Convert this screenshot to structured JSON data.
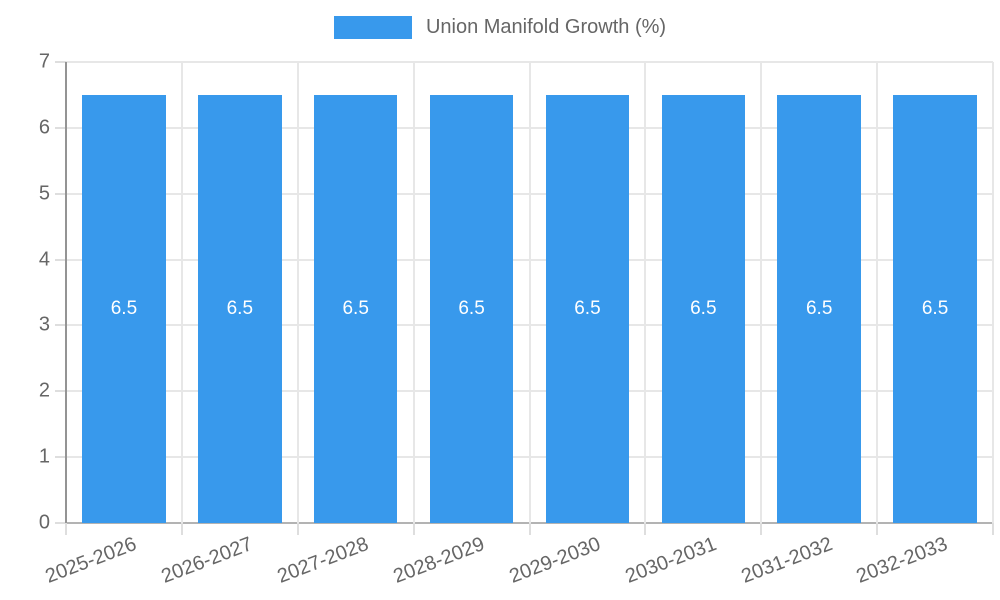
{
  "legend": {
    "label": "Union Manifold Growth (%)"
  },
  "colors": {
    "bar": "#3899EC",
    "grid": "#e7e7e7",
    "x_axis_line": "#b3b3b3",
    "y_axis_line": "#949494",
    "tick_text": "#666666",
    "bar_value_text": "#ffffff",
    "background": "#ffffff"
  },
  "chart_data": {
    "type": "bar",
    "title": "",
    "xlabel": "",
    "ylabel": "",
    "categories": [
      "2025-2026",
      "2026-2027",
      "2027-2028",
      "2028-2029",
      "2029-2030",
      "2030-2031",
      "2031-2032",
      "2032-2033"
    ],
    "series": [
      {
        "name": "Union Manifold Growth (%)",
        "color": "#3899EC",
        "values": [
          6.5,
          6.5,
          6.5,
          6.5,
          6.5,
          6.5,
          6.5,
          6.5
        ],
        "value_labels": [
          "6.5",
          "6.5",
          "6.5",
          "6.5",
          "6.5",
          "6.5",
          "6.5",
          "6.5"
        ]
      }
    ],
    "ylim": [
      0,
      7
    ],
    "yticks": [
      0,
      1,
      2,
      3,
      4,
      5,
      6,
      7
    ],
    "grid": true,
    "legend_position": "top-center",
    "bar_value_labels_inside": true
  }
}
